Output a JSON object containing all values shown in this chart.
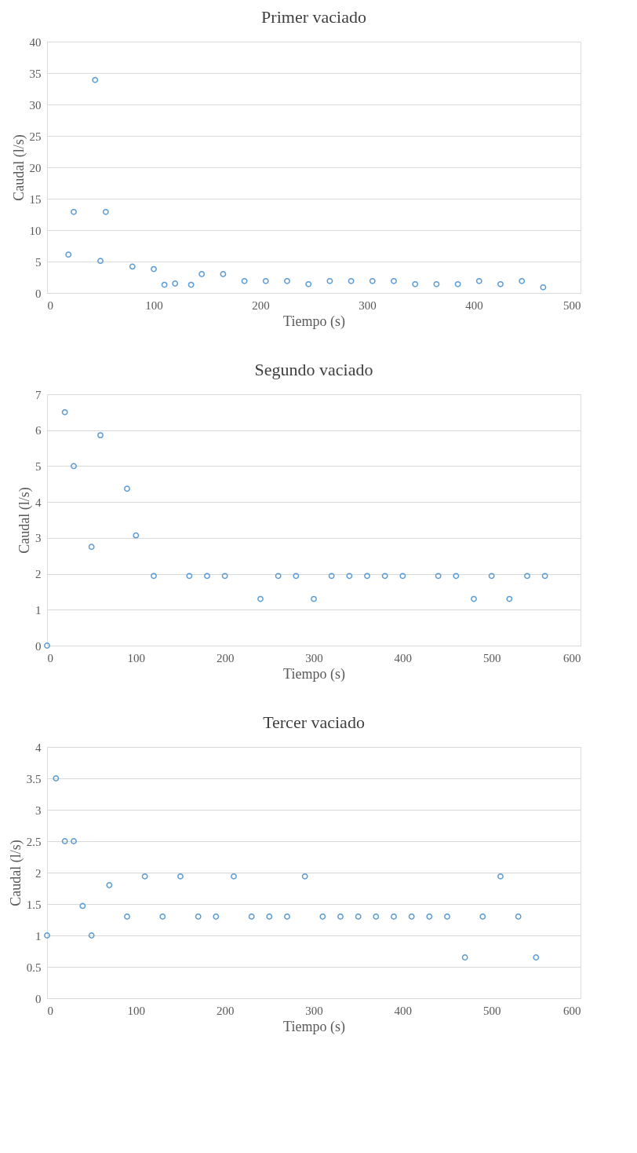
{
  "chart_data": [
    {
      "type": "scatter",
      "title": "Primer vaciado",
      "xlabel": "Tiempo (s)",
      "ylabel": "Caudal (l/s)",
      "xlim": [
        0,
        500
      ],
      "xticks": [
        0,
        100,
        200,
        300,
        400,
        500
      ],
      "ylim": [
        0,
        40
      ],
      "yticks": [
        0,
        5,
        10,
        15,
        20,
        25,
        30,
        35,
        40
      ],
      "grid": "y",
      "marker": "circle",
      "series": [
        {
          "color": "#5b9bd5",
          "x": [
            20,
            25,
            45,
            50,
            55,
            80,
            100,
            110,
            120,
            135,
            145,
            165,
            185,
            205,
            225,
            245,
            265,
            285,
            305,
            325,
            345,
            365,
            385,
            405,
            425,
            445,
            465
          ],
          "values": [
            6.1,
            12.9,
            33.9,
            5.1,
            12.9,
            4.2,
            3.8,
            1.3,
            1.5,
            1.3,
            3.0,
            3.0,
            1.9,
            1.9,
            1.9,
            1.4,
            1.9,
            1.9,
            1.9,
            1.9,
            1.4,
            1.4,
            1.4,
            1.9,
            1.4,
            1.9,
            0.9
          ]
        }
      ]
    },
    {
      "type": "scatter",
      "title": "Segundo vaciado",
      "xlabel": "Tiempo (s)",
      "ylabel": "Caudal (l/s)",
      "xlim": [
        0,
        600
      ],
      "xticks": [
        0,
        100,
        200,
        300,
        400,
        500,
        600
      ],
      "ylim": [
        0,
        7
      ],
      "yticks": [
        0,
        1,
        2,
        3,
        4,
        5,
        6,
        7
      ],
      "grid": "y",
      "marker": "circle",
      "series": [
        {
          "color": "#5b9bd5",
          "x": [
            0,
            20,
            30,
            50,
            60,
            90,
            100,
            120,
            160,
            180,
            200,
            240,
            260,
            280,
            300,
            320,
            340,
            360,
            380,
            400,
            440,
            460,
            480,
            500,
            520,
            540,
            560
          ],
          "values": [
            0,
            6.5,
            5.0,
            2.75,
            5.86,
            4.37,
            3.07,
            1.94,
            1.94,
            1.94,
            1.94,
            1.3,
            1.94,
            1.94,
            1.3,
            1.94,
            1.94,
            1.94,
            1.94,
            1.94,
            1.94,
            1.94,
            1.3,
            1.94,
            1.3,
            1.94,
            1.94
          ]
        }
      ]
    },
    {
      "type": "scatter",
      "title": "Tercer vaciado",
      "xlabel": "Tiempo (s)",
      "ylabel": "Caudal (l/s)",
      "xlim": [
        0,
        600
      ],
      "xticks": [
        0,
        100,
        200,
        300,
        400,
        500,
        600
      ],
      "ylim": [
        0,
        4
      ],
      "yticks": [
        0,
        0.5,
        1,
        1.5,
        2,
        2.5,
        3,
        3.5,
        4
      ],
      "grid": "y",
      "marker": "circle",
      "series": [
        {
          "color": "#5b9bd5",
          "x": [
            0,
            10,
            20,
            30,
            40,
            50,
            70,
            90,
            110,
            130,
            150,
            170,
            190,
            210,
            230,
            250,
            270,
            290,
            310,
            330,
            350,
            370,
            390,
            410,
            430,
            450,
            470,
            490,
            510,
            530,
            550
          ],
          "values": [
            1.0,
            3.5,
            2.5,
            2.5,
            1.47,
            1.0,
            1.8,
            1.3,
            1.94,
            1.3,
            1.94,
            1.3,
            1.3,
            1.94,
            1.3,
            1.3,
            1.3,
            1.94,
            1.3,
            1.3,
            1.3,
            1.3,
            1.3,
            1.3,
            1.3,
            1.3,
            0.65,
            1.3,
            1.94,
            1.3,
            0.65
          ]
        }
      ]
    }
  ]
}
